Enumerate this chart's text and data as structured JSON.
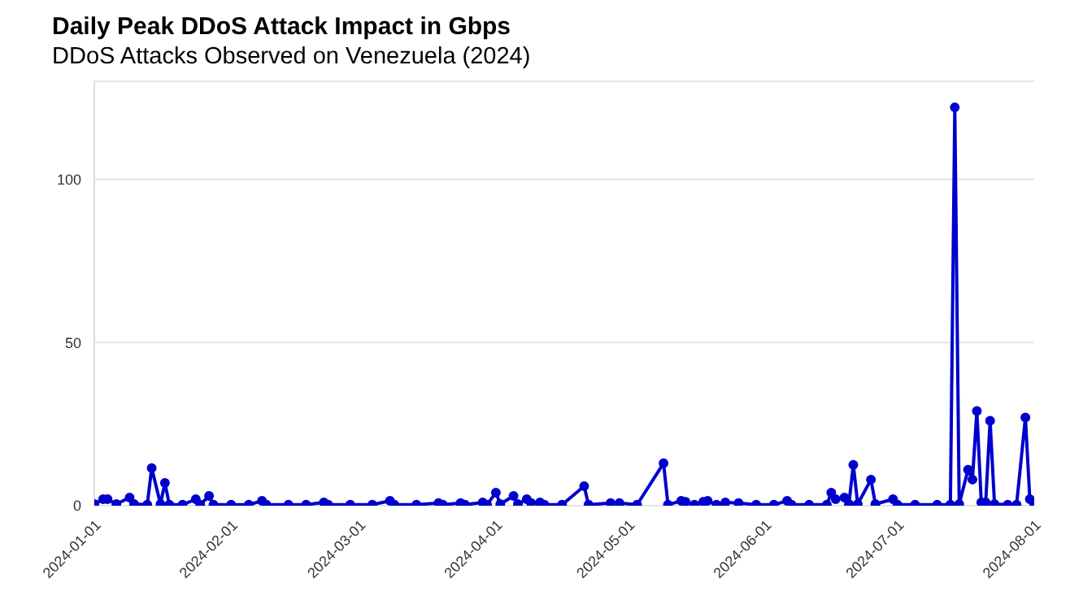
{
  "chart_data": {
    "type": "line",
    "title": "Daily Peak DDoS Attack Impact in Gbps",
    "subtitle": "DDoS Attacks Observed on Venezuela (2024)",
    "x": [
      "2024-01-01",
      "2024-01-03",
      "2024-01-04",
      "2024-01-06",
      "2024-01-09",
      "2024-01-10",
      "2024-01-13",
      "2024-01-14",
      "2024-01-16",
      "2024-01-17",
      "2024-01-18",
      "2024-01-21",
      "2024-01-24",
      "2024-01-25",
      "2024-01-27",
      "2024-01-28",
      "2024-02-01",
      "2024-02-05",
      "2024-02-08",
      "2024-02-09",
      "2024-02-14",
      "2024-02-18",
      "2024-02-22",
      "2024-02-23",
      "2024-02-28",
      "2024-03-04",
      "2024-03-08",
      "2024-03-09",
      "2024-03-14",
      "2024-03-19",
      "2024-03-20",
      "2024-03-24",
      "2024-03-25",
      "2024-03-29",
      "2024-03-30",
      "2024-04-01",
      "2024-04-02",
      "2024-04-05",
      "2024-04-06",
      "2024-04-08",
      "2024-04-09",
      "2024-04-11",
      "2024-04-12",
      "2024-04-16",
      "2024-04-21",
      "2024-04-22",
      "2024-04-27",
      "2024-04-29",
      "2024-05-03",
      "2024-05-09",
      "2024-05-10",
      "2024-05-13",
      "2024-05-14",
      "2024-05-16",
      "2024-05-18",
      "2024-05-19",
      "2024-05-21",
      "2024-05-23",
      "2024-05-26",
      "2024-05-30",
      "2024-06-03",
      "2024-06-06",
      "2024-06-07",
      "2024-06-11",
      "2024-06-15",
      "2024-06-16",
      "2024-06-17",
      "2024-06-19",
      "2024-06-20",
      "2024-06-21",
      "2024-06-22",
      "2024-06-25",
      "2024-06-26",
      "2024-06-30",
      "2024-07-01",
      "2024-07-05",
      "2024-07-10",
      "2024-07-13",
      "2024-07-14",
      "2024-07-15",
      "2024-07-17",
      "2024-07-18",
      "2024-07-19",
      "2024-07-20",
      "2024-07-21",
      "2024-07-22",
      "2024-07-23",
      "2024-07-26",
      "2024-07-28",
      "2024-07-30",
      "2024-07-31",
      "2024-08-01"
    ],
    "series": [
      {
        "color": "#0000cc",
        "values": [
          0.5,
          2,
          2,
          0.5,
          2.5,
          0.5,
          0.3,
          11.5,
          0.5,
          7,
          0.3,
          0.3,
          2,
          0.3,
          3,
          0.3,
          0.3,
          0.3,
          1.5,
          0.3,
          0.3,
          0.3,
          1,
          0.3,
          0.3,
          0.3,
          1.5,
          0.3,
          0.3,
          0.8,
          0.3,
          0.8,
          0.3,
          1,
          0.3,
          4,
          0.5,
          3,
          0.5,
          2,
          0.8,
          1,
          0.3,
          0.3,
          6,
          0.3,
          0.8,
          0.8,
          0.3,
          13,
          0.3,
          1.5,
          1.2,
          0.3,
          1.2,
          1.5,
          0.3,
          1,
          0.8,
          0.3,
          0.3,
          1.5,
          0.3,
          0.3,
          0.3,
          4,
          2,
          2.5,
          0.5,
          12.5,
          0.5,
          8,
          0.5,
          2,
          0.3,
          0.3,
          0.3,
          0.3,
          122,
          0.5,
          11,
          8,
          29,
          1,
          1,
          26,
          0.5,
          0.3,
          0.3,
          27,
          2,
          0.5
        ]
      }
    ],
    "xlim": [
      "2024-01-01",
      "2024-08-01"
    ],
    "xticks": [
      "2024-01-01",
      "2024-02-01",
      "2024-03-01",
      "2024-04-01",
      "2024-05-01",
      "2024-06-01",
      "2024-07-01",
      "2024-08-01"
    ],
    "ylim": [
      0,
      130
    ],
    "yticks": [
      0,
      50,
      100
    ],
    "grid": "y",
    "marker": "circle",
    "line_style": "solid"
  }
}
